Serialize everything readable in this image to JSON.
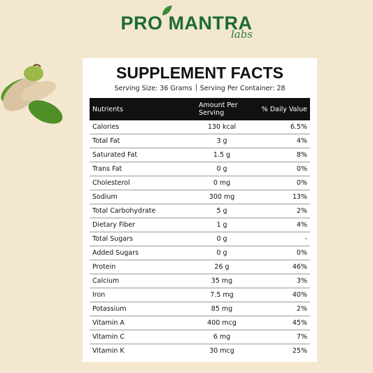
{
  "logo": {
    "brand": "PRO MANTRA",
    "sub": "labs"
  },
  "panel": {
    "title": "SUPPLEMENT FACTS",
    "serving_size": "Serving Size: 36 Grams",
    "servings_per_container": "Serving Per Container: 28"
  },
  "table": {
    "header": [
      "Nutrients",
      "Amount Per Serving",
      "% Daily Value"
    ],
    "rows": [
      [
        "Calories",
        "130 kcal",
        "6.5%"
      ],
      [
        "Total Fat",
        "3 g",
        "4%"
      ],
      [
        "Saturated Fat",
        "1.5 g",
        "8%"
      ],
      [
        "Trans Fat",
        "0 g",
        "0%"
      ],
      [
        "Cholesterol",
        "0 mg",
        "0%"
      ],
      [
        "Sodium",
        "300 mg",
        "13%"
      ],
      [
        "Total Carbohydrate",
        "5 g",
        "2%"
      ],
      [
        "Dietary Fiber",
        "1 g",
        "4%"
      ],
      [
        "Total Sugars",
        "0 g",
        "-"
      ],
      [
        "Added Sugars",
        "0 g",
        "0%"
      ],
      [
        "Protein",
        "26 g",
        "46%"
      ],
      [
        "Calcium",
        "35 mg",
        "3%"
      ],
      [
        "Iron",
        "7.5 mg",
        "40%"
      ],
      [
        "Potassium",
        "85 mg",
        "2%"
      ],
      [
        "Vitamin A",
        "400 mcg",
        "45%"
      ],
      [
        "Vitamin C",
        "6 mg",
        "7%"
      ],
      [
        "Vitamin K",
        "30 mcg",
        "25%"
      ]
    ]
  }
}
